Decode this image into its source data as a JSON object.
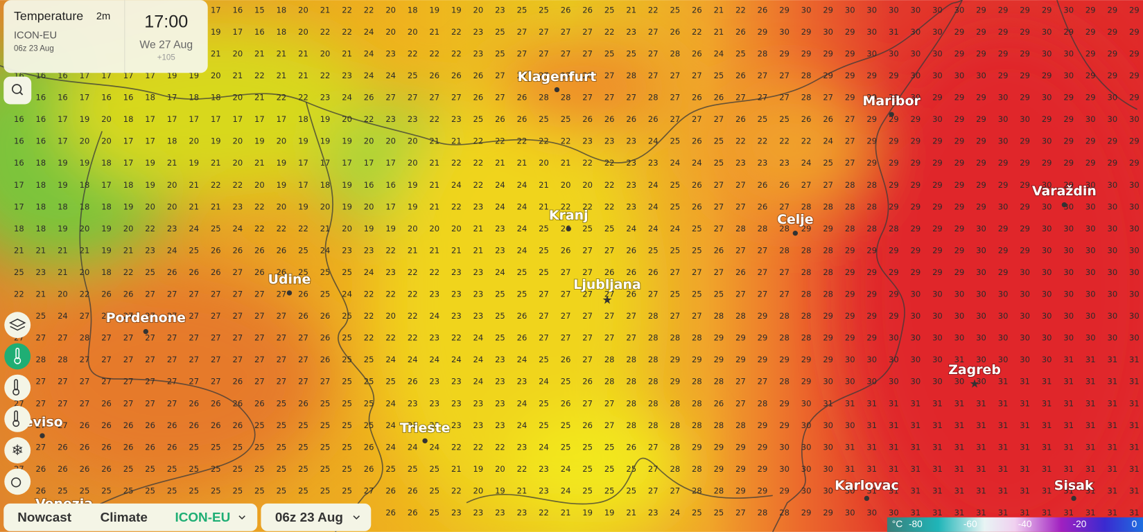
{
  "header": {
    "title": "Temperature",
    "level": "2m",
    "model": "ICON-EU",
    "run": "06z 23 Aug",
    "time": "17:00",
    "date": "We 27 Aug",
    "offset": "+105"
  },
  "cities": [
    "Klagenfurt",
    "Maribor",
    "Varaždin",
    "Kranj",
    "Celje",
    "Udine",
    "Ljubljana",
    "Pordenone",
    "Zagreb",
    "Treviso",
    "Trieste",
    "Karlovac",
    "Sisak",
    "Venezia"
  ],
  "bottom_bar": {
    "tabs": [
      "Nowcast",
      "Climate"
    ],
    "model": "ICON-EU",
    "run": "06z 23 Aug"
  },
  "legend": {
    "unit": "°C",
    "labels": [
      "-80",
      "-60",
      "-40",
      "-20",
      "0"
    ]
  },
  "grid": {
    "rows": [
      [
        null,
        null,
        null,
        null,
        null,
        null,
        null,
        null,
        null,
        17,
        16,
        15,
        18,
        20,
        21,
        22,
        22,
        20,
        18,
        19,
        19,
        20,
        23,
        25,
        25,
        26,
        26,
        25,
        21,
        22,
        25,
        26,
        21,
        22,
        26,
        29,
        30,
        29,
        30,
        30,
        30,
        30,
        30,
        30,
        29,
        29,
        29,
        29,
        30,
        29,
        29,
        29
      ],
      [
        null,
        null,
        null,
        null,
        null,
        null,
        null,
        null,
        null,
        19,
        17,
        16,
        18,
        20,
        22,
        22,
        24,
        20,
        20,
        21,
        22,
        23,
        25,
        27,
        27,
        27,
        27,
        22,
        23,
        27,
        26,
        22,
        21,
        26,
        29,
        30,
        29,
        30,
        29,
        30,
        31,
        30,
        30,
        29,
        29,
        29,
        29,
        30,
        29,
        29,
        29,
        29
      ],
      [
        null,
        null,
        null,
        null,
        null,
        null,
        null,
        null,
        null,
        21,
        20,
        21,
        21,
        21,
        20,
        21,
        24,
        23,
        22,
        22,
        22,
        23,
        25,
        27,
        27,
        27,
        27,
        25,
        25,
        27,
        28,
        26,
        24,
        25,
        28,
        29,
        29,
        29,
        29,
        30,
        30,
        30,
        30,
        29,
        29,
        29,
        29,
        30,
        30,
        29,
        29,
        29
      ],
      [
        16,
        16,
        16,
        17,
        17,
        17,
        17,
        19,
        19,
        20,
        21,
        22,
        21,
        21,
        22,
        23,
        24,
        24,
        25,
        26,
        26,
        26,
        27,
        27,
        27,
        27,
        28,
        27,
        28,
        27,
        27,
        27,
        25,
        26,
        27,
        27,
        28,
        29,
        29,
        29,
        29,
        30,
        30,
        30,
        30,
        29,
        29,
        29,
        30,
        29,
        29,
        29
      ],
      [
        15,
        16,
        16,
        17,
        16,
        16,
        18,
        17,
        18,
        18,
        20,
        21,
        22,
        22,
        23,
        24,
        26,
        27,
        27,
        27,
        27,
        26,
        27,
        26,
        28,
        28,
        27,
        27,
        27,
        28,
        27,
        26,
        26,
        27,
        27,
        27,
        28,
        27,
        29,
        29,
        29,
        30,
        29,
        29,
        29,
        30,
        29,
        30,
        29,
        29,
        30,
        29
      ],
      [
        16,
        16,
        17,
        19,
        20,
        18,
        17,
        17,
        17,
        17,
        17,
        17,
        17,
        18,
        19,
        20,
        22,
        23,
        23,
        22,
        23,
        25,
        26,
        26,
        25,
        25,
        26,
        26,
        26,
        26,
        27,
        27,
        27,
        26,
        25,
        25,
        26,
        26,
        27,
        29,
        29,
        29,
        30,
        29,
        29,
        30,
        30,
        29,
        29,
        30,
        30,
        30
      ],
      [
        16,
        16,
        17,
        20,
        20,
        17,
        17,
        18,
        20,
        19,
        20,
        19,
        20,
        19,
        19,
        19,
        20,
        20,
        20,
        21,
        21,
        22,
        22,
        22,
        22,
        22,
        23,
        23,
        23,
        24,
        25,
        26,
        25,
        22,
        22,
        22,
        22,
        24,
        27,
        29,
        29,
        29,
        29,
        29,
        29,
        30,
        29,
        30,
        29,
        29,
        29,
        29
      ],
      [
        16,
        18,
        19,
        19,
        18,
        17,
        19,
        21,
        19,
        21,
        20,
        21,
        19,
        17,
        17,
        17,
        17,
        17,
        20,
        21,
        22,
        22,
        21,
        21,
        20,
        21,
        22,
        22,
        23,
        23,
        24,
        24,
        25,
        23,
        23,
        23,
        24,
        25,
        27,
        29,
        29,
        29,
        29,
        29,
        29,
        29,
        29,
        29,
        29,
        29,
        29,
        29
      ],
      [
        17,
        18,
        19,
        18,
        17,
        18,
        19,
        20,
        21,
        22,
        22,
        20,
        19,
        17,
        18,
        19,
        16,
        16,
        19,
        21,
        24,
        22,
        24,
        24,
        21,
        20,
        20,
        22,
        23,
        24,
        25,
        26,
        27,
        27,
        26,
        26,
        27,
        27,
        28,
        28,
        29,
        29,
        29,
        29,
        29,
        29,
        29,
        30,
        29,
        30,
        30,
        30
      ],
      [
        17,
        18,
        18,
        18,
        18,
        19,
        20,
        20,
        21,
        21,
        23,
        22,
        20,
        19,
        20,
        19,
        20,
        17,
        19,
        21,
        22,
        23,
        24,
        24,
        21,
        22,
        22,
        22,
        23,
        24,
        25,
        26,
        27,
        27,
        26,
        27,
        28,
        28,
        28,
        28,
        29,
        29,
        29,
        29,
        29,
        30,
        29,
        30,
        30,
        30,
        30,
        30
      ],
      [
        18,
        18,
        19,
        20,
        19,
        20,
        22,
        23,
        24,
        25,
        24,
        22,
        22,
        22,
        21,
        20,
        19,
        19,
        20,
        20,
        20,
        21,
        23,
        24,
        25,
        26,
        25,
        25,
        24,
        24,
        24,
        25,
        27,
        28,
        28,
        28,
        29,
        29,
        28,
        28,
        28,
        29,
        29,
        29,
        30,
        29,
        29,
        30,
        30,
        30,
        30,
        30
      ],
      [
        21,
        21,
        21,
        21,
        19,
        21,
        23,
        24,
        25,
        26,
        26,
        26,
        26,
        25,
        24,
        23,
        23,
        22,
        21,
        21,
        21,
        21,
        23,
        24,
        25,
        26,
        27,
        27,
        26,
        25,
        25,
        25,
        26,
        27,
        27,
        28,
        28,
        28,
        29,
        29,
        29,
        29,
        29,
        29,
        30,
        29,
        29,
        30,
        30,
        30,
        30,
        30
      ],
      [
        25,
        23,
        21,
        20,
        18,
        22,
        25,
        26,
        26,
        26,
        27,
        26,
        26,
        25,
        25,
        25,
        24,
        23,
        22,
        22,
        23,
        23,
        24,
        25,
        25,
        27,
        27,
        26,
        26,
        26,
        27,
        27,
        27,
        26,
        27,
        27,
        28,
        28,
        29,
        29,
        29,
        29,
        29,
        29,
        30,
        29,
        30,
        30,
        30,
        30,
        30,
        30
      ],
      [
        22,
        21,
        20,
        22,
        26,
        26,
        27,
        27,
        27,
        27,
        27,
        27,
        27,
        26,
        25,
        24,
        22,
        22,
        22,
        23,
        23,
        23,
        25,
        25,
        27,
        27,
        27,
        27,
        26,
        27,
        25,
        25,
        25,
        27,
        27,
        27,
        28,
        28,
        29,
        29,
        29,
        30,
        30,
        30,
        30,
        30,
        30,
        30,
        30,
        30,
        30,
        30
      ],
      [
        23,
        25,
        24,
        27,
        27,
        27,
        27,
        27,
        27,
        27,
        27,
        27,
        27,
        26,
        26,
        25,
        22,
        20,
        22,
        24,
        23,
        23,
        25,
        26,
        27,
        27,
        27,
        27,
        27,
        28,
        27,
        27,
        28,
        28,
        29,
        28,
        28,
        29,
        29,
        29,
        29,
        30,
        30,
        30,
        30,
        30,
        30,
        30,
        30,
        30,
        30,
        30
      ],
      [
        27,
        27,
        27,
        28,
        27,
        27,
        27,
        27,
        27,
        27,
        27,
        27,
        27,
        27,
        26,
        25,
        22,
        22,
        22,
        23,
        22,
        24,
        25,
        26,
        27,
        27,
        27,
        27,
        27,
        28,
        28,
        28,
        29,
        29,
        29,
        28,
        28,
        29,
        29,
        29,
        30,
        30,
        30,
        30,
        30,
        30,
        30,
        30,
        30,
        30,
        30,
        30
      ],
      [
        28,
        28,
        28,
        27,
        27,
        27,
        27,
        27,
        27,
        27,
        27,
        27,
        27,
        27,
        26,
        25,
        25,
        24,
        24,
        24,
        24,
        24,
        23,
        24,
        25,
        26,
        27,
        28,
        28,
        28,
        29,
        29,
        29,
        29,
        29,
        29,
        29,
        29,
        30,
        30,
        30,
        30,
        30,
        31,
        30,
        30,
        30,
        30,
        31,
        31,
        31,
        31
      ],
      [
        27,
        27,
        27,
        27,
        27,
        27,
        27,
        27,
        27,
        27,
        26,
        27,
        27,
        27,
        27,
        25,
        25,
        25,
        26,
        23,
        23,
        24,
        23,
        23,
        24,
        25,
        26,
        28,
        28,
        28,
        29,
        28,
        28,
        27,
        27,
        28,
        29,
        30,
        30,
        30,
        30,
        30,
        30,
        30,
        30,
        31,
        31,
        31,
        31,
        31,
        31,
        31
      ],
      [
        27,
        27,
        27,
        27,
        26,
        27,
        27,
        27,
        26,
        26,
        26,
        26,
        25,
        26,
        25,
        25,
        25,
        24,
        23,
        23,
        23,
        23,
        23,
        24,
        25,
        26,
        27,
        27,
        28,
        28,
        28,
        28,
        26,
        27,
        28,
        29,
        30,
        31,
        31,
        31,
        31,
        31,
        31,
        31,
        31,
        31,
        31,
        31,
        31,
        31,
        31,
        31
      ],
      [
        27,
        27,
        27,
        26,
        26,
        26,
        26,
        26,
        26,
        26,
        26,
        25,
        25,
        25,
        25,
        25,
        25,
        24,
        23,
        23,
        23,
        23,
        23,
        24,
        25,
        25,
        26,
        27,
        28,
        28,
        28,
        28,
        28,
        28,
        29,
        29,
        30,
        30,
        30,
        31,
        31,
        31,
        31,
        31,
        31,
        31,
        31,
        31,
        31,
        31,
        31,
        31
      ],
      [
        27,
        27,
        26,
        26,
        26,
        26,
        26,
        26,
        25,
        25,
        25,
        25,
        25,
        25,
        25,
        25,
        26,
        24,
        24,
        24,
        22,
        22,
        22,
        23,
        24,
        25,
        25,
        25,
        26,
        27,
        28,
        29,
        29,
        29,
        29,
        30,
        30,
        30,
        31,
        31,
        31,
        31,
        31,
        31,
        31,
        31,
        31,
        31,
        31,
        31,
        31,
        31
      ],
      [
        27,
        26,
        26,
        26,
        26,
        25,
        25,
        25,
        25,
        25,
        25,
        25,
        25,
        25,
        25,
        25,
        26,
        25,
        25,
        25,
        21,
        19,
        20,
        22,
        23,
        24,
        25,
        25,
        25,
        27,
        28,
        28,
        29,
        29,
        29,
        30,
        30,
        30,
        31,
        31,
        31,
        31,
        31,
        31,
        31,
        31,
        31,
        31,
        31,
        31,
        31,
        31
      ],
      [
        27,
        26,
        25,
        25,
        25,
        25,
        25,
        25,
        25,
        25,
        25,
        25,
        25,
        25,
        25,
        25,
        27,
        26,
        26,
        25,
        22,
        20,
        19,
        21,
        23,
        24,
        25,
        25,
        25,
        27,
        27,
        28,
        28,
        29,
        29,
        29,
        30,
        30,
        30,
        31,
        31,
        31,
        31,
        31,
        31,
        31,
        31,
        31,
        31,
        31,
        31,
        31
      ],
      [
        null,
        null,
        null,
        null,
        null,
        null,
        null,
        null,
        null,
        null,
        null,
        null,
        null,
        null,
        null,
        null,
        null,
        26,
        26,
        25,
        23,
        23,
        23,
        23,
        22,
        21,
        19,
        19,
        21,
        23,
        24,
        25,
        25,
        27,
        28,
        28,
        29,
        29,
        30,
        30,
        30,
        31,
        31,
        31,
        31,
        31,
        31,
        31,
        31,
        31,
        31,
        31
      ]
    ]
  }
}
